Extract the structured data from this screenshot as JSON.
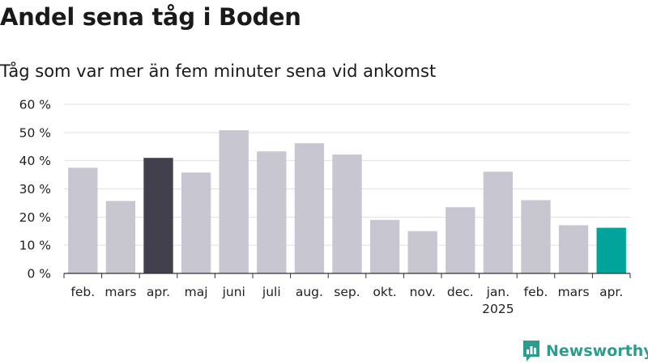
{
  "chart_data": {
    "type": "bar",
    "title": "Andel sena tåg i Boden",
    "subtitle": "Tåg som var mer än fem minuter sena vid ankomst",
    "categories": [
      "feb.",
      "mars",
      "apr.",
      "maj",
      "juni",
      "juli",
      "aug.",
      "sep.",
      "okt.",
      "nov.",
      "dec.",
      "jan.",
      "feb.",
      "mars",
      "apr."
    ],
    "year_labels": [
      "",
      "",
      "",
      "",
      "",
      "",
      "",
      "",
      "",
      "",
      "",
      "2025",
      "",
      "",
      ""
    ],
    "values": [
      37.5,
      25.7,
      41.0,
      35.8,
      50.8,
      43.3,
      46.2,
      42.2,
      19.0,
      15.0,
      23.5,
      36.1,
      26.0,
      17.1,
      16.2
    ],
    "bar_colors": [
      "#c8c6d0",
      "#c8c6d0",
      "#41404c",
      "#c8c6d0",
      "#c8c6d0",
      "#c8c6d0",
      "#c8c6d0",
      "#c8c6d0",
      "#c8c6d0",
      "#c8c6d0",
      "#c8c6d0",
      "#c8c6d0",
      "#c8c6d0",
      "#c8c6d0",
      "#00a49a"
    ],
    "y_ticks": [
      0,
      10,
      20,
      30,
      40,
      50,
      60
    ],
    "y_tick_labels": [
      "0 %",
      "10 %",
      "20 %",
      "30 %",
      "40 %",
      "50 %",
      "60 %"
    ],
    "ylim": [
      0,
      60
    ],
    "grid": true,
    "legend": false
  },
  "brand": {
    "name": "Newsworthy",
    "icon": "newsworthy-logo-icon",
    "color": "#2a9d8f"
  }
}
